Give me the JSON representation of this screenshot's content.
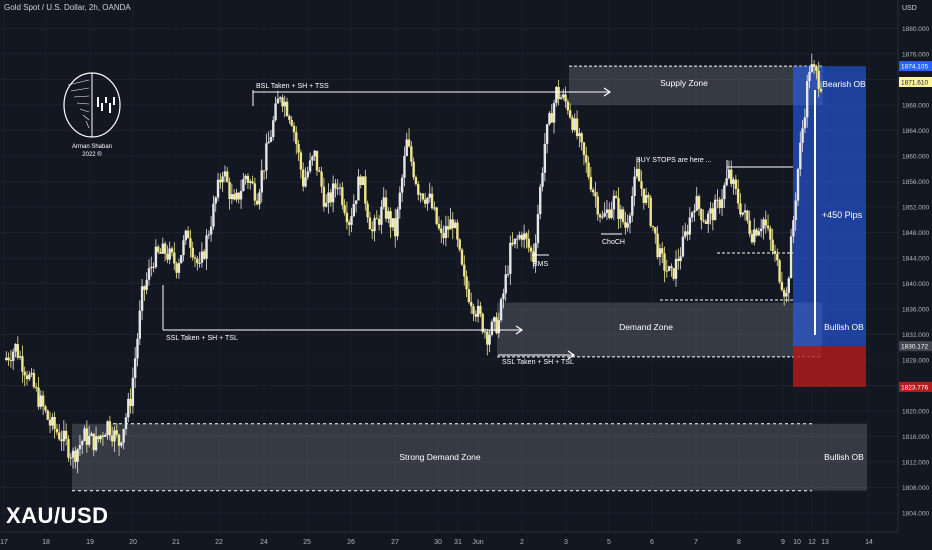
{
  "header": {
    "title": "Gold Spot / U.S. Dollar, 2h, OANDA"
  },
  "symbol_label": "XAU/USD",
  "price_axis": {
    "currency": "USD",
    "ticks": [
      "1880.000",
      "1876.000",
      "1872.000",
      "1868.000",
      "1864.000",
      "1860.000",
      "1856.000",
      "1852.000",
      "1848.000",
      "1844.000",
      "1840.000",
      "1836.000",
      "1832.000",
      "1828.000",
      "1824.000",
      "1820.000",
      "1816.000",
      "1812.000",
      "1808.000",
      "1804.000"
    ],
    "badges": [
      {
        "text": "1874.105",
        "value": 1874.105,
        "color": "#2962ff",
        "text_color": "#ffffff"
      },
      {
        "text": "1871.610",
        "value": 1871.61,
        "color": "#fff59d",
        "text_color": "#131722"
      },
      {
        "text": "1830.172",
        "value": 1830.172,
        "color": "#434651",
        "text_color": "#ffffff"
      },
      {
        "text": "1823.776",
        "value": 1823.776,
        "color": "#b71c1c",
        "text_color": "#ffffff"
      }
    ]
  },
  "time_axis": {
    "labels": [
      "17",
      "18",
      "19",
      "20",
      "21",
      "22",
      "24",
      "25",
      "26",
      "27",
      "30",
      "31",
      "Jun",
      "2",
      "3",
      "5",
      "6",
      "7",
      "8",
      "9",
      "10",
      "12",
      "13",
      "14"
    ]
  },
  "logo": {
    "line1": "Arman Shaban",
    "line2": "2022 ®"
  },
  "annotations": {
    "supply_zone": "Supply Zone",
    "demand_zone": "Demand Zone",
    "strong_demand_zone": "Strong Demand Zone",
    "bsl": "BSL Taken + SH + TSS",
    "ssl_left": "SSL Taken + SH + TSL",
    "ssl_right": "SSL Taken + SH + TSL",
    "buy_stops": "BUY STOPS are here ...",
    "bms": "BMS",
    "choch": "ChoCH",
    "bearish_ob": "Bearish OB",
    "bullish_ob_mid": "Bullish OB",
    "bullish_ob_low": "Bullish OB",
    "pips": "+450 Pips"
  },
  "colors": {
    "background": "#131722",
    "candle_up": "#e6e6e6",
    "candle_down": "#f0e68c",
    "zone": "#787b86",
    "position_target": "#2962ff",
    "position_stop": "#b71c1c"
  },
  "chart_data": {
    "type": "candlestick",
    "title": "Gold Spot / U.S. Dollar, 2h, OANDA",
    "ylabel": "USD",
    "ylim": [
      1801.5,
      1883
    ],
    "x_tick_labels": [
      "17",
      "18",
      "19",
      "20",
      "21",
      "22",
      "24",
      "25",
      "26",
      "27",
      "30",
      "31",
      "Jun",
      "2",
      "3",
      "5",
      "6",
      "7",
      "8",
      "9",
      "10",
      "12",
      "13",
      "14"
    ],
    "path_points_price": [
      1828,
      1830,
      1826,
      1822,
      1818,
      1816,
      1813,
      1816,
      1815,
      1818,
      1815,
      1822,
      1838,
      1844,
      1845,
      1843,
      1848,
      1842,
      1850,
      1858,
      1852,
      1857,
      1854,
      1862,
      1870,
      1866,
      1856,
      1860,
      1852,
      1856,
      1850,
      1857,
      1848,
      1852,
      1848,
      1862,
      1855,
      1853,
      1847,
      1850,
      1840,
      1836,
      1832,
      1834,
      1845,
      1848,
      1844,
      1862,
      1870,
      1868,
      1862,
      1856,
      1850,
      1853,
      1849,
      1857,
      1852,
      1844,
      1841,
      1846,
      1853,
      1850,
      1852,
      1857,
      1852,
      1848,
      1850,
      1844,
      1838,
      1858,
      1874,
      1871.6
    ],
    "zones": [
      {
        "name": "Supply Zone",
        "low": 1868,
        "high": 1874.1
      },
      {
        "name": "Demand Zone",
        "low": 1828.5,
        "high": 1837
      },
      {
        "name": "Strong Demand Zone",
        "low": 1807.5,
        "high": 1818
      },
      {
        "name": "Bearish OB",
        "low": 1868,
        "high": 1874.1
      },
      {
        "name": "Bullish OB",
        "low": 1828.5,
        "high": 1837
      },
      {
        "name": "Bullish OB",
        "low": 1807.5,
        "high": 1818
      }
    ],
    "position": {
      "entry": 1830.172,
      "stop": 1823.776,
      "target": 1874.105,
      "label": "+450 Pips"
    }
  }
}
